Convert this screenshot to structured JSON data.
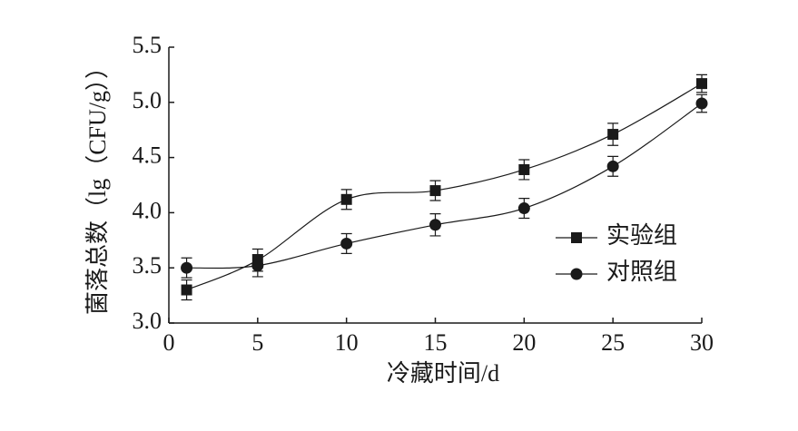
{
  "chart_data": {
    "type": "line",
    "x_label": "冷藏时间/d",
    "y_label": "菌落总数（lg（CFU/g））",
    "x": [
      1,
      5,
      10,
      15,
      20,
      25,
      30
    ],
    "series": [
      {
        "name": "实验组",
        "color": "#1a1a1a",
        "marker": "square",
        "values": [
          3.3,
          3.57,
          4.12,
          4.2,
          4.39,
          4.71,
          5.17
        ],
        "errors": [
          0.09,
          0.1,
          0.09,
          0.09,
          0.09,
          0.1,
          0.08
        ]
      },
      {
        "name": "对照组",
        "color": "#1a1a1a",
        "marker": "circle",
        "values": [
          3.5,
          3.52,
          3.72,
          3.89,
          4.04,
          4.42,
          4.99
        ],
        "errors": [
          0.09,
          0.1,
          0.09,
          0.1,
          0.09,
          0.09,
          0.08
        ]
      }
    ],
    "xlim": [
      0,
      30
    ],
    "xticks": [
      0,
      5,
      10,
      15,
      20,
      25,
      30
    ],
    "ylim": [
      3,
      5.5
    ],
    "yticks": [
      {
        "value": 3,
        "label": "3.0"
      },
      3.5,
      {
        "value": 4,
        "label": "4.0"
      },
      4.5,
      {
        "value": 5,
        "label": "5.0"
      },
      5.5
    ],
    "grid": false,
    "legend": "center right",
    "smooth": true
  }
}
